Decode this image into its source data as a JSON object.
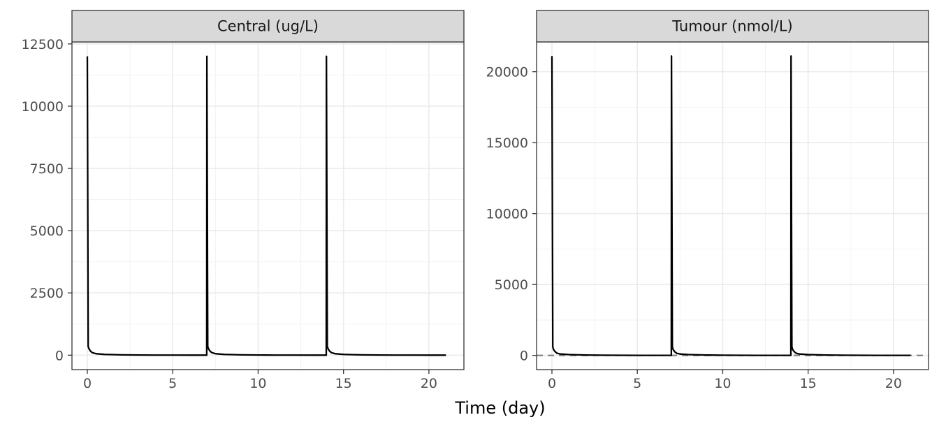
{
  "chart_data": {
    "type": "line",
    "xlabel": "Time (day)",
    "facets": [
      {
        "title": "Central (ug/L)",
        "xlim": [
          -0.9,
          22.05
        ],
        "ylim": [
          -580,
          12580
        ],
        "xticks": [
          0,
          5,
          10,
          15,
          20
        ],
        "yticks": [
          0,
          2500,
          5000,
          7500,
          10000,
          12500
        ],
        "ytick_labels": [
          "0",
          "2500",
          "5000",
          "7500",
          "10000",
          "12500"
        ],
        "reference_line": null,
        "series": [
          {
            "x": [
              0,
              0.05,
              0.1,
              0.2,
              0.3,
              0.5,
              1,
              2,
              3,
              4,
              5,
              6,
              6.99,
              7,
              7.05,
              7.1,
              7.2,
              7.3,
              7.5,
              8,
              9,
              10,
              11,
              12,
              13,
              13.99,
              14,
              14.05,
              14.1,
              14.2,
              14.3,
              14.5,
              15,
              16,
              17,
              18,
              19,
              20,
              21
            ],
            "y": [
              12000,
              350,
              250,
              150,
              100,
              60,
              30,
              12,
              6,
              3,
              2,
              1,
              0,
              12000,
              350,
              250,
              150,
              100,
              60,
              30,
              12,
              6,
              3,
              2,
              1,
              0,
              12000,
              350,
              250,
              150,
              100,
              60,
              30,
              12,
              6,
              3,
              2,
              1,
              0
            ]
          }
        ]
      },
      {
        "title": "Tumour (nmol/L)",
        "xlim": [
          -0.9,
          22.05
        ],
        "ylim": [
          -1000,
          22100
        ],
        "xticks": [
          0,
          5,
          10,
          15,
          20
        ],
        "yticks": [
          0,
          5000,
          10000,
          15000,
          20000
        ],
        "ytick_labels": [
          "0",
          "5000",
          "10000",
          "15000",
          "20000"
        ],
        "reference_line": {
          "y": 0,
          "style": "dashed",
          "color": "#7f7f7f"
        },
        "series": [
          {
            "x": [
              0,
              0.05,
              0.1,
              0.2,
              0.3,
              0.5,
              1,
              2,
              3,
              4,
              5,
              6,
              6.99,
              7,
              7.05,
              7.1,
              7.2,
              7.3,
              7.5,
              8,
              9,
              10,
              11,
              12,
              13,
              13.99,
              14,
              14.05,
              14.1,
              14.2,
              14.3,
              14.5,
              15,
              16,
              17,
              18,
              19,
              20,
              21
            ],
            "y": [
              21100,
              600,
              400,
              250,
              150,
              100,
              60,
              30,
              15,
              8,
              5,
              3,
              2,
              21100,
              600,
              400,
              250,
              150,
              100,
              60,
              30,
              15,
              8,
              5,
              3,
              2,
              21100,
              600,
              400,
              250,
              150,
              100,
              60,
              30,
              15,
              8,
              5,
              3,
              2
            ]
          }
        ]
      }
    ]
  }
}
